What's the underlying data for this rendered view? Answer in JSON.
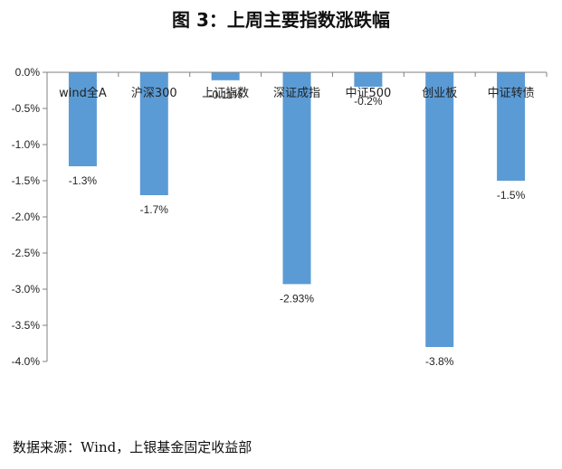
{
  "title": "图 3：上周主要指数涨跌幅",
  "source": "数据来源：Wind，上银基金固定收益部",
  "colors": {
    "bar": "#5B9BD5",
    "axis": "#808080",
    "text": "#222222"
  },
  "chart_data": {
    "type": "bar",
    "categories": [
      "wind全A",
      "沪深300",
      "上证指数",
      "深证成指",
      "中证500",
      "创业板",
      "中证转债"
    ],
    "values": [
      -1.3,
      -1.7,
      -0.11,
      -2.93,
      -0.2,
      -3.8,
      -1.5
    ],
    "data_labels": [
      "-1.3%",
      "-1.7%",
      "-0.11%",
      "-2.93%",
      "-0.2%",
      "-3.8%",
      "-1.5%"
    ],
    "yticks": [
      0,
      -0.5,
      -1.0,
      -1.5,
      -2.0,
      -2.5,
      -3.0,
      -3.5,
      -4.0
    ],
    "ytick_labels": [
      "0.0%",
      "-0.5%",
      "-1.0%",
      "-1.5%",
      "-2.0%",
      "-2.5%",
      "-3.0%",
      "-3.5%",
      "-4.0%"
    ],
    "ylim": [
      -4.0,
      0.0
    ],
    "grid": false,
    "legend": "none"
  }
}
